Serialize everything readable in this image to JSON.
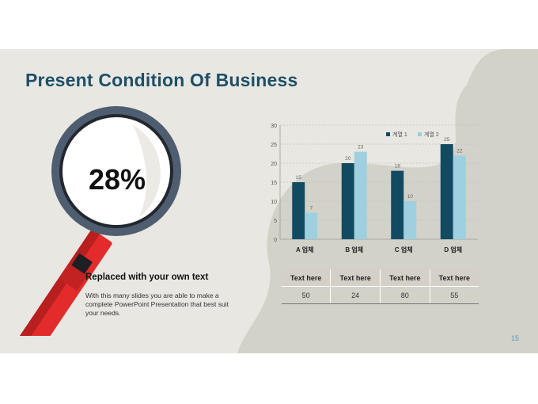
{
  "slide": {
    "title": "Present Condition Of Business",
    "percentage": "28%",
    "subheading": "Replaced with your own text",
    "body": "With this many slides you are able to make a complete PowerPoint Presentation that best suit your needs.",
    "page_number": "15"
  },
  "colors": {
    "title": "#1e4f67",
    "series1": "#124a62",
    "series2": "#9ed0df",
    "handle": "#e42b2b",
    "lens_ring": "#4e5e70"
  },
  "chart_data": {
    "type": "bar",
    "categories": [
      "A 업체",
      "B 업체",
      "C 업체",
      "D 업체"
    ],
    "series": [
      {
        "name": "계열 1",
        "values": [
          15,
          20,
          18,
          25
        ]
      },
      {
        "name": "계열 2",
        "values": [
          7,
          23,
          10,
          22
        ]
      }
    ],
    "ylim": [
      0,
      30
    ],
    "yticks": [
      0,
      5,
      10,
      15,
      20,
      25,
      30
    ],
    "grid": true,
    "legend": "top-right",
    "data_labels": true
  },
  "table": {
    "headers": [
      "Text here",
      "Text here",
      "Text here",
      "Text here"
    ],
    "values": [
      "50",
      "24",
      "80",
      "55"
    ]
  }
}
